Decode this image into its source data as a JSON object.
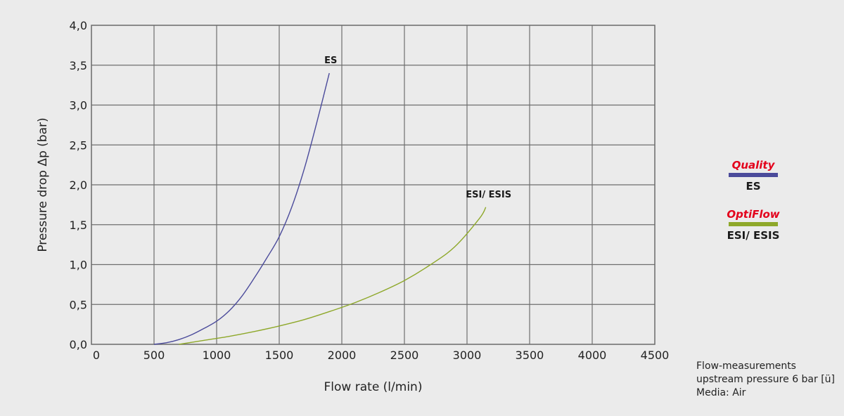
{
  "chart_data": {
    "type": "line",
    "xlabel": "Flow rate (l/min)",
    "ylabel": "Pressure drop Δp (bar)",
    "xlim": [
      0,
      4500
    ],
    "ylim": [
      0,
      4.0
    ],
    "x_ticks": [
      "0",
      "500",
      "1000",
      "1500",
      "2000",
      "2500",
      "3000",
      "3500",
      "4000",
      "4500"
    ],
    "y_ticks": [
      "0,0",
      "0,5",
      "1,0",
      "1,5",
      "2,0",
      "2,5",
      "3,0",
      "3,5",
      "4,0"
    ],
    "grid": true,
    "series": [
      {
        "name": "ES",
        "color": "#4b4b9b",
        "x": [
          500,
          600,
          700,
          800,
          900,
          1000,
          1100,
          1200,
          1300,
          1400,
          1500,
          1600,
          1700,
          1800,
          1900
        ],
        "y": [
          0.0,
          0.02,
          0.06,
          0.12,
          0.2,
          0.29,
          0.42,
          0.6,
          0.83,
          1.08,
          1.35,
          1.72,
          2.2,
          2.78,
          3.4
        ]
      },
      {
        "name": "ESI/ ESIS",
        "color": "#8ea82a",
        "x": [
          700,
          900,
          1100,
          1300,
          1500,
          1700,
          1900,
          2100,
          2300,
          2500,
          2700,
          2900,
          3100,
          3150
        ],
        "y": [
          0.0,
          0.05,
          0.1,
          0.16,
          0.23,
          0.31,
          0.41,
          0.52,
          0.65,
          0.8,
          0.99,
          1.22,
          1.58,
          1.72
        ]
      }
    ]
  },
  "legend": [
    {
      "brand": "Quality",
      "name": "ES",
      "color": "#4b4b9b"
    },
    {
      "brand": "OptiFlow",
      "name": "ESI/ ESIS",
      "color": "#8ea82a"
    }
  ],
  "note": {
    "line1": "Flow-measurements",
    "line2": "upstream pressure 6 bar [ü]",
    "line3": "Media: Air"
  }
}
